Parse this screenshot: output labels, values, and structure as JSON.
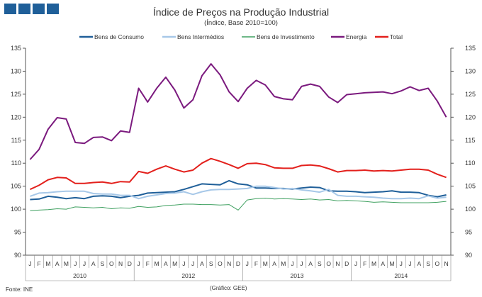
{
  "chart_data": {
    "type": "line",
    "title": "Índice de Preços na Produção Industrial",
    "subtitle": "(Índice, Base 2010=100)",
    "xlabel": "",
    "ylabel": "",
    "ylim": [
      90,
      135
    ],
    "ytick_step": 5,
    "y_ticks": [
      "90",
      "95",
      "100",
      "105",
      "110",
      "115",
      "120",
      "125",
      "130",
      "135"
    ],
    "grid": false,
    "legend_position": "top",
    "months": [
      "J",
      "F",
      "M",
      "A",
      "M",
      "J",
      "J",
      "A",
      "S",
      "O",
      "N",
      "D",
      "J",
      "F",
      "M",
      "A",
      "M",
      "J",
      "J",
      "A",
      "S",
      "O",
      "N",
      "D",
      "J",
      "F",
      "M",
      "A",
      "M",
      "J",
      "J",
      "A",
      "S",
      "O",
      "N",
      "D",
      "J",
      "F",
      "M",
      "A",
      "M",
      "J",
      "J",
      "A",
      "S",
      "O",
      "N"
    ],
    "years": [
      "2010",
      "2012",
      "2013",
      "2014"
    ],
    "series": [
      {
        "name": "Bens de Consumo",
        "color": "#1f5f99",
        "width": 2,
        "values": [
          102.1,
          102.2,
          102.8,
          102.6,
          102.3,
          102.5,
          102.3,
          102.8,
          102.9,
          102.8,
          102.5,
          102.8,
          103.0,
          103.5,
          103.6,
          103.7,
          103.8,
          104.3,
          104.9,
          105.5,
          105.4,
          105.3,
          106.2,
          105.5,
          105.3,
          104.6,
          104.6,
          104.5,
          104.5,
          104.4,
          104.6,
          104.8,
          104.7,
          104.0,
          103.9,
          103.9,
          103.8,
          103.6,
          103.7,
          103.8,
          104.0,
          103.7,
          103.7,
          103.6,
          103.0,
          102.7,
          103.1
        ]
      },
      {
        "name": "Bens Intermédios",
        "color": "#a7c8e8",
        "width": 2,
        "values": [
          102.8,
          103.5,
          103.6,
          103.8,
          103.9,
          103.9,
          103.9,
          103.4,
          103.3,
          103.3,
          103.0,
          103.0,
          102.3,
          102.8,
          103.1,
          103.4,
          103.5,
          103.8,
          103.2,
          103.8,
          104.2,
          104.3,
          104.3,
          104.4,
          104.5,
          105.0,
          105.0,
          104.7,
          104.4,
          104.5,
          104.2,
          104.0,
          103.7,
          104.3,
          103.0,
          102.8,
          102.8,
          102.7,
          102.6,
          102.4,
          102.3,
          102.3,
          102.4,
          102.3,
          102.9,
          102.4,
          102.6
        ]
      },
      {
        "name": "Bens de Investimento",
        "color": "#3fa060",
        "width": 1,
        "values": [
          99.7,
          99.8,
          99.9,
          100.1,
          100.0,
          100.5,
          100.4,
          100.3,
          100.4,
          100.1,
          100.3,
          100.2,
          100.6,
          100.4,
          100.5,
          100.8,
          100.9,
          101.1,
          101.1,
          101.0,
          101.0,
          100.9,
          101.0,
          99.8,
          102.0,
          102.3,
          102.4,
          102.2,
          102.3,
          102.2,
          102.1,
          102.2,
          102.0,
          102.1,
          101.8,
          101.9,
          101.8,
          101.7,
          101.5,
          101.6,
          101.5,
          101.4,
          101.4,
          101.4,
          101.4,
          101.5,
          101.7
        ]
      },
      {
        "name": "Energia",
        "color": "#7b1a7e",
        "width": 2,
        "values": [
          110.8,
          113.0,
          117.4,
          119.9,
          119.6,
          114.5,
          114.3,
          115.6,
          115.7,
          114.9,
          117.0,
          116.7,
          126.3,
          123.3,
          126.3,
          128.7,
          125.9,
          122.0,
          123.8,
          129.0,
          131.6,
          129.2,
          125.5,
          123.4,
          126.3,
          128.0,
          127.0,
          124.5,
          124.0,
          123.8,
          126.7,
          127.2,
          126.7,
          124.4,
          123.2,
          124.9,
          125.1,
          125.3,
          125.4,
          125.5,
          125.1,
          125.7,
          126.6,
          125.8,
          126.3,
          123.5,
          120.0
        ]
      },
      {
        "name": "Total",
        "color": "#e3201c",
        "width": 2,
        "values": [
          104.3,
          105.2,
          106.4,
          106.9,
          106.8,
          105.6,
          105.6,
          105.8,
          105.9,
          105.6,
          106.0,
          105.9,
          108.2,
          107.8,
          108.7,
          109.4,
          108.7,
          108.1,
          108.5,
          110.0,
          111.0,
          110.4,
          109.7,
          108.9,
          109.9,
          110.0,
          109.7,
          109.0,
          108.9,
          108.9,
          109.5,
          109.6,
          109.4,
          108.8,
          108.1,
          108.4,
          108.4,
          108.5,
          108.3,
          108.4,
          108.3,
          108.5,
          108.7,
          108.7,
          108.5,
          107.6,
          106.9
        ]
      }
    ]
  },
  "footer": {
    "source": "Fonte:  INE",
    "credit": "(Gráfico:  GEE)"
  }
}
